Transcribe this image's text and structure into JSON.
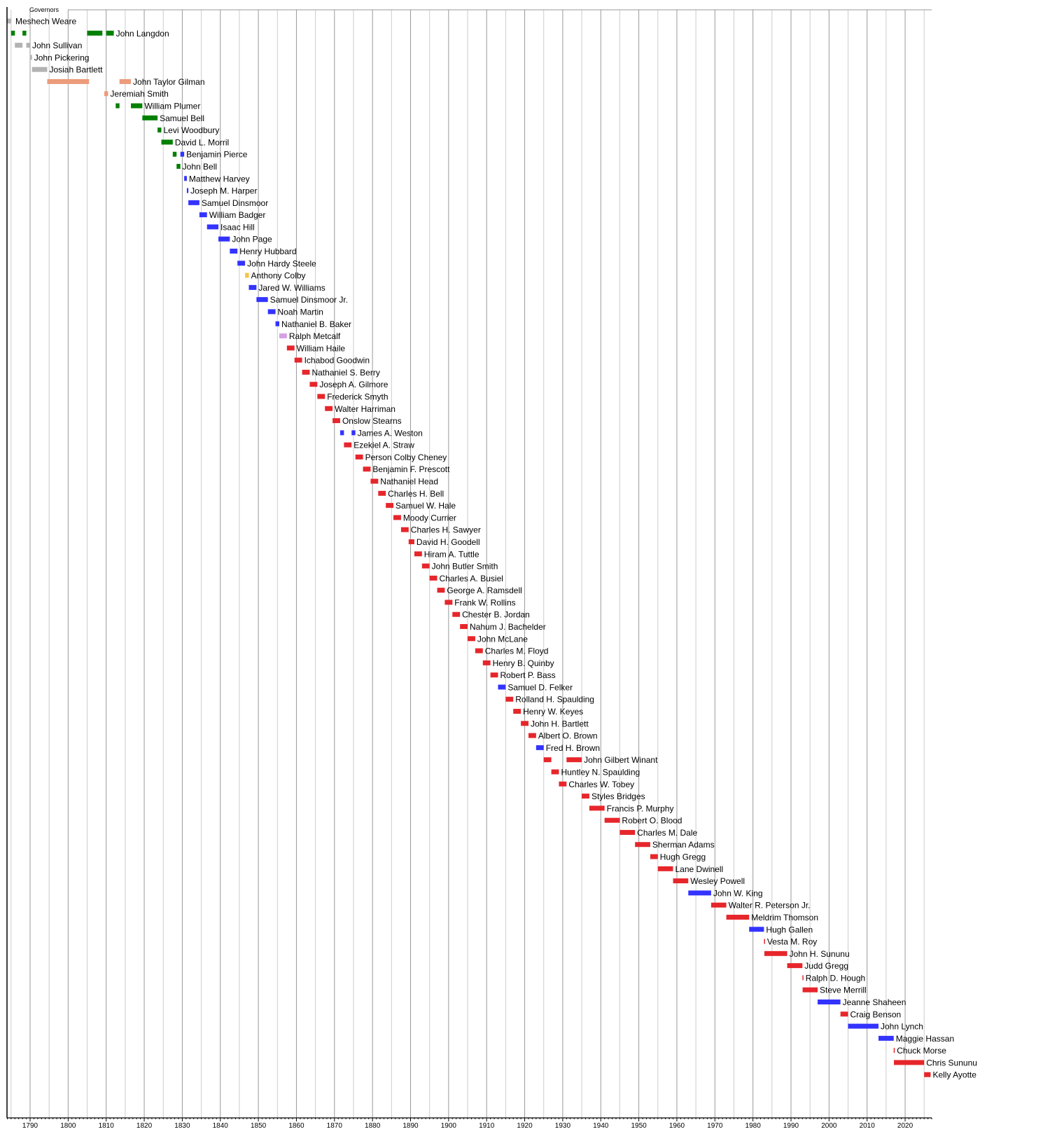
{
  "chart_data": {
    "type": "bar",
    "orientation": "horizontal-timeline",
    "title": "Governors",
    "xlim": [
      1784,
      2027
    ],
    "grid": true,
    "x_ticks": [
      "1790",
      "1800",
      "1810",
      "1820",
      "1830",
      "1840",
      "1850",
      "1860",
      "1870",
      "1880",
      "1890",
      "1900",
      "1910",
      "1920",
      "1930",
      "1940",
      "1950",
      "1960",
      "1970",
      "1980",
      "1990",
      "2000",
      "2010",
      "2020"
    ],
    "colors": {
      "gray": "#b3b3b3",
      "green": "#008000",
      "salmon": "#ec9b7b",
      "blue": "#3333ff",
      "red": "#e6262b",
      "orange": "#f7c347",
      "lavender": "#d6a2e3"
    },
    "series": [
      {
        "name": "Meshech Weare",
        "terms": [
          [
            1784,
            1785,
            "gray"
          ]
        ]
      },
      {
        "name": "John Langdon",
        "terms": [
          [
            1785,
            1786,
            "green"
          ],
          [
            1788,
            1789,
            "green"
          ],
          [
            1805,
            1809,
            "green"
          ],
          [
            1810,
            1812,
            "green"
          ]
        ]
      },
      {
        "name": "John Sullivan",
        "terms": [
          [
            1786,
            1788,
            "gray"
          ],
          [
            1789,
            1790,
            "gray"
          ]
        ]
      },
      {
        "name": "John Pickering",
        "terms": [
          [
            1789.9,
            1790.5,
            "gray"
          ]
        ]
      },
      {
        "name": "Josiah Bartlett",
        "terms": [
          [
            1790.5,
            1794.5,
            "gray"
          ]
        ]
      },
      {
        "name": "John Taylor Gilman",
        "terms": [
          [
            1794.5,
            1805.5,
            "salmon"
          ],
          [
            1813.5,
            1816.5,
            "salmon"
          ]
        ]
      },
      {
        "name": "Jeremiah Smith",
        "terms": [
          [
            1809.5,
            1810.5,
            "salmon"
          ]
        ]
      },
      {
        "name": "William Plumer",
        "terms": [
          [
            1812.5,
            1813.5,
            "green"
          ],
          [
            1816.5,
            1819.5,
            "green"
          ]
        ]
      },
      {
        "name": "Samuel Bell",
        "terms": [
          [
            1819.5,
            1823.5,
            "green"
          ]
        ]
      },
      {
        "name": "Levi Woodbury",
        "terms": [
          [
            1823.5,
            1824.5,
            "green"
          ]
        ]
      },
      {
        "name": "David L. Morril",
        "terms": [
          [
            1824.5,
            1827.5,
            "green"
          ]
        ]
      },
      {
        "name": "Benjamin Pierce",
        "terms": [
          [
            1827.5,
            1828.5,
            "green"
          ],
          [
            1829.5,
            1830.5,
            "blue"
          ]
        ]
      },
      {
        "name": "John Bell",
        "terms": [
          [
            1828.5,
            1829.5,
            "green"
          ]
        ]
      },
      {
        "name": "Matthew Harvey",
        "terms": [
          [
            1830.5,
            1831.2,
            "blue"
          ]
        ]
      },
      {
        "name": "Joseph M. Harper",
        "terms": [
          [
            1831.2,
            1831.6,
            "blue"
          ]
        ]
      },
      {
        "name": "Samuel Dinsmoor",
        "terms": [
          [
            1831.6,
            1834.5,
            "blue"
          ]
        ]
      },
      {
        "name": "William Badger",
        "terms": [
          [
            1834.5,
            1836.5,
            "blue"
          ]
        ]
      },
      {
        "name": "Isaac Hill",
        "terms": [
          [
            1836.5,
            1839.5,
            "blue"
          ]
        ]
      },
      {
        "name": "John Page",
        "terms": [
          [
            1839.5,
            1842.5,
            "blue"
          ]
        ]
      },
      {
        "name": "Henry Hubbard",
        "terms": [
          [
            1842.5,
            1844.5,
            "blue"
          ]
        ]
      },
      {
        "name": "John Hardy Steele",
        "terms": [
          [
            1844.5,
            1846.5,
            "blue"
          ]
        ]
      },
      {
        "name": "Anthony Colby",
        "terms": [
          [
            1846.5,
            1847.5,
            "orange"
          ]
        ]
      },
      {
        "name": "Jared W. Williams",
        "terms": [
          [
            1847.5,
            1849.5,
            "blue"
          ]
        ]
      },
      {
        "name": "Samuel Dinsmoor Jr.",
        "terms": [
          [
            1849.5,
            1852.5,
            "blue"
          ]
        ]
      },
      {
        "name": "Noah Martin",
        "terms": [
          [
            1852.5,
            1854.5,
            "blue"
          ]
        ]
      },
      {
        "name": "Nathaniel B. Baker",
        "terms": [
          [
            1854.5,
            1855.5,
            "blue"
          ]
        ]
      },
      {
        "name": "Ralph Metcalf",
        "terms": [
          [
            1855.5,
            1857.5,
            "lavender"
          ]
        ]
      },
      {
        "name": "William Haile",
        "terms": [
          [
            1857.5,
            1859.5,
            "red"
          ]
        ]
      },
      {
        "name": "Ichabod Goodwin",
        "terms": [
          [
            1859.5,
            1861.5,
            "red"
          ]
        ]
      },
      {
        "name": "Nathaniel S. Berry",
        "terms": [
          [
            1861.5,
            1863.5,
            "red"
          ]
        ]
      },
      {
        "name": "Joseph A. Gilmore",
        "terms": [
          [
            1863.5,
            1865.5,
            "red"
          ]
        ]
      },
      {
        "name": "Frederick Smyth",
        "terms": [
          [
            1865.5,
            1867.5,
            "red"
          ]
        ]
      },
      {
        "name": "Walter Harriman",
        "terms": [
          [
            1867.5,
            1869.5,
            "red"
          ]
        ]
      },
      {
        "name": "Onslow Stearns",
        "terms": [
          [
            1869.5,
            1871.5,
            "red"
          ]
        ]
      },
      {
        "name": "James A. Weston",
        "terms": [
          [
            1871.5,
            1872.5,
            "blue"
          ],
          [
            1874.5,
            1875.5,
            "blue"
          ]
        ]
      },
      {
        "name": "Ezekiel A. Straw",
        "terms": [
          [
            1872.5,
            1874.5,
            "red"
          ]
        ]
      },
      {
        "name": "Person Colby Cheney",
        "terms": [
          [
            1875.5,
            1877.5,
            "red"
          ]
        ]
      },
      {
        "name": "Benjamin F. Prescott",
        "terms": [
          [
            1877.5,
            1879.5,
            "red"
          ]
        ]
      },
      {
        "name": "Nathaniel Head",
        "terms": [
          [
            1879.5,
            1881.5,
            "red"
          ]
        ]
      },
      {
        "name": "Charles H. Bell",
        "terms": [
          [
            1881.5,
            1883.5,
            "red"
          ]
        ]
      },
      {
        "name": "Samuel W. Hale",
        "terms": [
          [
            1883.5,
            1885.5,
            "red"
          ]
        ]
      },
      {
        "name": "Moody Currier",
        "terms": [
          [
            1885.5,
            1887.5,
            "red"
          ]
        ]
      },
      {
        "name": "Charles H. Sawyer",
        "terms": [
          [
            1887.5,
            1889.5,
            "red"
          ]
        ]
      },
      {
        "name": "David H. Goodell",
        "terms": [
          [
            1889.5,
            1891,
            "red"
          ]
        ]
      },
      {
        "name": "Hiram A. Tuttle",
        "terms": [
          [
            1891,
            1893,
            "red"
          ]
        ]
      },
      {
        "name": "John Butler Smith",
        "terms": [
          [
            1893,
            1895,
            "red"
          ]
        ]
      },
      {
        "name": "Charles A. Busiel",
        "terms": [
          [
            1895,
            1897,
            "red"
          ]
        ]
      },
      {
        "name": "George A. Ramsdell",
        "terms": [
          [
            1897,
            1899,
            "red"
          ]
        ]
      },
      {
        "name": "Frank W. Rollins",
        "terms": [
          [
            1899,
            1901,
            "red"
          ]
        ]
      },
      {
        "name": "Chester B. Jordan",
        "terms": [
          [
            1901,
            1903,
            "red"
          ]
        ]
      },
      {
        "name": "Nahum J. Bachelder",
        "terms": [
          [
            1903,
            1905,
            "red"
          ]
        ]
      },
      {
        "name": "John McLane",
        "terms": [
          [
            1905,
            1907,
            "red"
          ]
        ]
      },
      {
        "name": "Charles M. Floyd",
        "terms": [
          [
            1907,
            1909,
            "red"
          ]
        ]
      },
      {
        "name": "Henry B. Quinby",
        "terms": [
          [
            1909,
            1911,
            "red"
          ]
        ]
      },
      {
        "name": "Robert P. Bass",
        "terms": [
          [
            1911,
            1913,
            "red"
          ]
        ]
      },
      {
        "name": "Samuel D. Felker",
        "terms": [
          [
            1913,
            1915,
            "blue"
          ]
        ]
      },
      {
        "name": "Rolland H. Spaulding",
        "terms": [
          [
            1915,
            1917,
            "red"
          ]
        ]
      },
      {
        "name": "Henry W. Keyes",
        "terms": [
          [
            1917,
            1919,
            "red"
          ]
        ]
      },
      {
        "name": "John H. Bartlett",
        "terms": [
          [
            1919,
            1921,
            "red"
          ]
        ]
      },
      {
        "name": "Albert O. Brown",
        "terms": [
          [
            1921,
            1923,
            "red"
          ]
        ]
      },
      {
        "name": "Fred H. Brown",
        "terms": [
          [
            1923,
            1925,
            "blue"
          ]
        ]
      },
      {
        "name": "John Gilbert Winant",
        "terms": [
          [
            1925,
            1927,
            "red"
          ],
          [
            1931,
            1935,
            "red"
          ]
        ]
      },
      {
        "name": "Huntley N. Spaulding",
        "terms": [
          [
            1927,
            1929,
            "red"
          ]
        ]
      },
      {
        "name": "Charles W. Tobey",
        "terms": [
          [
            1929,
            1931,
            "red"
          ]
        ]
      },
      {
        "name": "Styles Bridges",
        "terms": [
          [
            1935,
            1937,
            "red"
          ]
        ]
      },
      {
        "name": "Francis P. Murphy",
        "terms": [
          [
            1937,
            1941,
            "red"
          ]
        ]
      },
      {
        "name": "Robert O. Blood",
        "terms": [
          [
            1941,
            1945,
            "red"
          ]
        ]
      },
      {
        "name": "Charles M. Dale",
        "terms": [
          [
            1945,
            1949,
            "red"
          ]
        ]
      },
      {
        "name": "Sherman Adams",
        "terms": [
          [
            1949,
            1953,
            "red"
          ]
        ]
      },
      {
        "name": "Hugh Gregg",
        "terms": [
          [
            1953,
            1955,
            "red"
          ]
        ]
      },
      {
        "name": "Lane Dwinell",
        "terms": [
          [
            1955,
            1959,
            "red"
          ]
        ]
      },
      {
        "name": "Wesley Powell",
        "terms": [
          [
            1959,
            1963,
            "red"
          ]
        ]
      },
      {
        "name": "John W. King",
        "terms": [
          [
            1963,
            1969,
            "blue"
          ]
        ]
      },
      {
        "name": "Walter R. Peterson Jr.",
        "terms": [
          [
            1969,
            1973,
            "red"
          ]
        ]
      },
      {
        "name": "Meldrim Thomson",
        "terms": [
          [
            1973,
            1979,
            "red"
          ]
        ]
      },
      {
        "name": "Hugh Gallen",
        "terms": [
          [
            1979,
            1982.9,
            "blue"
          ]
        ]
      },
      {
        "name": "Vesta M. Roy",
        "terms": [
          [
            1982.9,
            1983,
            "red"
          ]
        ]
      },
      {
        "name": "John H. Sununu",
        "terms": [
          [
            1983,
            1989,
            "red"
          ]
        ]
      },
      {
        "name": "Judd Gregg",
        "terms": [
          [
            1989,
            1993,
            "red"
          ]
        ]
      },
      {
        "name": "Ralph D. Hough",
        "terms": [
          [
            1993,
            1993.05,
            "red"
          ]
        ]
      },
      {
        "name": "Steve Merrill",
        "terms": [
          [
            1993.05,
            1997,
            "red"
          ]
        ]
      },
      {
        "name": "Jeanne Shaheen",
        "terms": [
          [
            1997,
            2003,
            "blue"
          ]
        ]
      },
      {
        "name": "Craig Benson",
        "terms": [
          [
            2003,
            2005,
            "red"
          ]
        ]
      },
      {
        "name": "John Lynch",
        "terms": [
          [
            2005,
            2013,
            "blue"
          ]
        ]
      },
      {
        "name": "Maggie Hassan",
        "terms": [
          [
            2013,
            2017,
            "blue"
          ]
        ]
      },
      {
        "name": "Chuck Morse",
        "terms": [
          [
            2017,
            2017.05,
            "red"
          ]
        ]
      },
      {
        "name": "Chris Sununu",
        "terms": [
          [
            2017.05,
            2025,
            "red"
          ]
        ]
      },
      {
        "name": "Kelly Ayotte",
        "terms": [
          [
            2025,
            2026.7,
            "red"
          ]
        ]
      }
    ]
  }
}
